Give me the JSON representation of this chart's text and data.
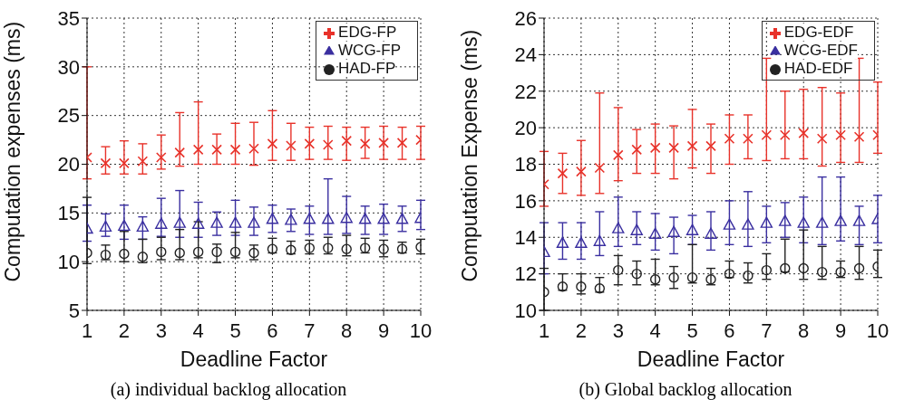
{
  "chart_data": [
    {
      "type": "scatter",
      "xlabel": "Deadline Factor",
      "ylabel": "Computation expenses (ms)",
      "annotations": [
        "(a) individual backlog allocation"
      ],
      "x": [
        1,
        1.5,
        2,
        2.5,
        3,
        3.5,
        4,
        4.5,
        5,
        5.5,
        6,
        6.5,
        7,
        7.5,
        8,
        8.5,
        9,
        9.5,
        10
      ],
      "xlim": [
        1,
        10
      ],
      "xticks": [
        1,
        2,
        3,
        4,
        5,
        6,
        7,
        8,
        9,
        10
      ],
      "ylim": [
        5,
        35
      ],
      "yticks": [
        5,
        10,
        15,
        20,
        25,
        30,
        35
      ],
      "grid": true,
      "legend": "top right",
      "series": [
        {
          "name": "EDG-FP",
          "color": "#e8322a",
          "marker": "cross",
          "values": [
            20.7,
            20.1,
            20.1,
            20.3,
            20.7,
            21.2,
            21.5,
            21.5,
            21.5,
            21.6,
            22.1,
            21.9,
            22.1,
            22.0,
            22.4,
            22.1,
            22.2,
            22.2,
            22.5
          ],
          "errors": [
            [
              18.5,
              30
            ],
            [
              19.0,
              21.8
            ],
            [
              19.0,
              22.4
            ],
            [
              19.0,
              22.1
            ],
            [
              19.5,
              23.0
            ],
            [
              19.8,
              25.3
            ],
            [
              20.0,
              26.4
            ],
            [
              20.0,
              23.1
            ],
            [
              20.0,
              24.2
            ],
            [
              19.9,
              24.3
            ],
            [
              20.4,
              25.5
            ],
            [
              20.4,
              24.2
            ],
            [
              20.5,
              23.8
            ],
            [
              20.5,
              23.9
            ],
            [
              20.4,
              23.8
            ],
            [
              20.6,
              23.8
            ],
            [
              20.5,
              23.9
            ],
            [
              20.5,
              23.8
            ],
            [
              20.5,
              23.9
            ]
          ]
        },
        {
          "name": "WCG-FP",
          "color": "#3a2fa0",
          "marker": "triangle",
          "values": [
            13.4,
            13.6,
            13.7,
            13.6,
            13.9,
            14.0,
            13.9,
            14.0,
            14.0,
            14.0,
            14.4,
            14.3,
            14.4,
            14.4,
            14.5,
            14.4,
            14.4,
            14.4,
            14.5
          ],
          "errors": [
            [
              12.1,
              15.8
            ],
            [
              12.6,
              14.9
            ],
            [
              12.3,
              15.8
            ],
            [
              12.3,
              14.6
            ],
            [
              12.6,
              16.5
            ],
            [
              12.5,
              17.3
            ],
            [
              12.5,
              16.1
            ],
            [
              12.7,
              15.1
            ],
            [
              12.7,
              16.3
            ],
            [
              12.7,
              15.6
            ],
            [
              13.0,
              15.8
            ],
            [
              13.1,
              15.4
            ],
            [
              12.8,
              15.7
            ],
            [
              12.8,
              18.5
            ],
            [
              12.9,
              16.7
            ],
            [
              12.8,
              15.7
            ],
            [
              12.8,
              15.9
            ],
            [
              13.1,
              15.7
            ],
            [
              13.3,
              16.3
            ]
          ]
        },
        {
          "name": "HAD-FP",
          "color": "#222222",
          "marker": "circle",
          "values": [
            10.9,
            10.7,
            10.8,
            10.5,
            11.0,
            10.9,
            11.0,
            11.0,
            11.0,
            10.9,
            11.3,
            11.2,
            11.4,
            11.4,
            11.3,
            11.4,
            11.3,
            11.3,
            11.5
          ],
          "errors": [
            [
              9.8,
              16.6
            ],
            [
              10.2,
              11.7
            ],
            [
              10.0,
              13.1
            ],
            [
              9.9,
              12.3
            ],
            [
              10.2,
              12.5
            ],
            [
              10.2,
              13.3
            ],
            [
              10.4,
              14.1
            ],
            [
              9.9,
              11.8
            ],
            [
              10.4,
              13.0
            ],
            [
              10.2,
              11.7
            ],
            [
              10.9,
              12.4
            ],
            [
              10.8,
              12.1
            ],
            [
              10.8,
              12.2
            ],
            [
              10.8,
              12.5
            ],
            [
              10.6,
              12.7
            ],
            [
              10.9,
              12.4
            ],
            [
              10.5,
              12.2
            ],
            [
              10.9,
              12.0
            ],
            [
              10.8,
              12.3
            ]
          ]
        }
      ]
    },
    {
      "type": "scatter",
      "xlabel": "Deadline Factor",
      "ylabel": "Computation Expense (ms)",
      "annotations": [
        "(b) Global backlog allocation"
      ],
      "x": [
        1,
        1.5,
        2,
        2.5,
        3,
        3.5,
        4,
        4.5,
        5,
        5.5,
        6,
        6.5,
        7,
        7.5,
        8,
        8.5,
        9,
        9.5,
        10
      ],
      "xlim": [
        1,
        10
      ],
      "xticks": [
        1,
        2,
        3,
        4,
        5,
        6,
        7,
        8,
        9,
        10
      ],
      "ylim": [
        10,
        26
      ],
      "yticks": [
        10,
        12,
        14,
        16,
        18,
        20,
        22,
        24,
        26
      ],
      "grid": true,
      "legend": "top right",
      "series": [
        {
          "name": "EDG-EDF",
          "color": "#e8322a",
          "marker": "cross",
          "values": [
            16.9,
            17.5,
            17.6,
            17.8,
            18.5,
            18.8,
            18.9,
            18.9,
            19.0,
            19.0,
            19.4,
            19.4,
            19.6,
            19.6,
            19.7,
            19.4,
            19.6,
            19.5,
            19.6
          ],
          "errors": [
            [
              15.7,
              18.7
            ],
            [
              16.4,
              18.6
            ],
            [
              16.3,
              19.3
            ],
            [
              16.4,
              21.9
            ],
            [
              17.1,
              21.1
            ],
            [
              17.5,
              19.9
            ],
            [
              17.5,
              20.2
            ],
            [
              17.2,
              20.1
            ],
            [
              17.8,
              21.0
            ],
            [
              17.5,
              20.2
            ],
            [
              18.0,
              20.7
            ],
            [
              18.3,
              20.7
            ],
            [
              18.2,
              23.8
            ],
            [
              18.3,
              22.0
            ],
            [
              18.3,
              22.1
            ],
            [
              17.9,
              22.2
            ],
            [
              18.1,
              21.9
            ],
            [
              18.1,
              23.8
            ],
            [
              18.6,
              22.5
            ]
          ]
        },
        {
          "name": "WCG-EDF",
          "color": "#3a2fa0",
          "marker": "triangle",
          "values": [
            13.2,
            13.7,
            13.7,
            13.8,
            14.5,
            14.4,
            14.2,
            14.3,
            14.4,
            14.2,
            14.7,
            14.7,
            14.8,
            14.9,
            14.8,
            14.8,
            14.9,
            14.9,
            15.0
          ],
          "errors": [
            [
              12.0,
              14.8
            ],
            [
              12.8,
              14.8
            ],
            [
              12.8,
              14.8
            ],
            [
              13.0,
              15.4
            ],
            [
              13.5,
              16.2
            ],
            [
              13.6,
              15.4
            ],
            [
              13.3,
              15.3
            ],
            [
              13.1,
              15.1
            ],
            [
              13.6,
              15.2
            ],
            [
              13.3,
              15.4
            ],
            [
              13.6,
              16.0
            ],
            [
              13.5,
              16.5
            ],
            [
              13.7,
              15.7
            ],
            [
              14.0,
              15.9
            ],
            [
              13.7,
              16.2
            ],
            [
              13.6,
              17.3
            ],
            [
              13.8,
              17.3
            ],
            [
              13.6,
              15.7
            ],
            [
              13.7,
              16.3
            ]
          ]
        },
        {
          "name": "HAD-EDF",
          "color": "#222222",
          "marker": "circle",
          "values": [
            11.0,
            11.3,
            11.3,
            11.2,
            12.2,
            12.0,
            11.7,
            11.8,
            11.8,
            11.7,
            12.0,
            11.9,
            12.2,
            12.3,
            12.3,
            12.1,
            12.1,
            12.3,
            12.4
          ],
          "errors": [
            [
              10.0,
              12.3
            ],
            [
              11.1,
              12.0
            ],
            [
              10.9,
              12.0
            ],
            [
              11.0,
              11.8
            ],
            [
              11.4,
              13.0
            ],
            [
              11.4,
              12.7
            ],
            [
              11.4,
              12.8
            ],
            [
              11.2,
              12.4
            ],
            [
              11.5,
              13.6
            ],
            [
              11.4,
              12.3
            ],
            [
              11.8,
              12.7
            ],
            [
              11.5,
              12.6
            ],
            [
              11.7,
              13.1
            ],
            [
              12.1,
              13.9
            ],
            [
              11.7,
              14.4
            ],
            [
              11.7,
              13.5
            ],
            [
              11.8,
              12.7
            ],
            [
              11.7,
              13.5
            ],
            [
              11.8,
              13.3
            ]
          ]
        }
      ]
    }
  ]
}
